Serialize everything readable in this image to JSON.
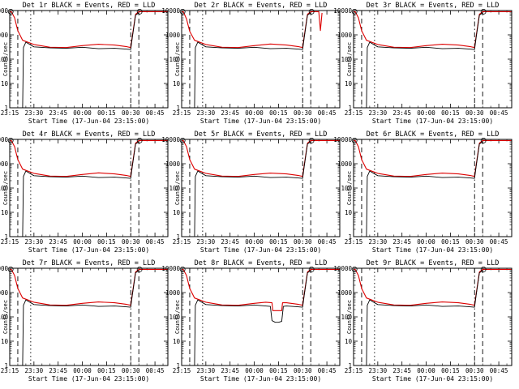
{
  "chart_data": [
    {
      "type": "line",
      "title": "Det 1r BLACK = Events, RED = LLD",
      "ylabel": "Counts/sec",
      "xlabel": "Start Time (17-Jun-04 23:15:00)",
      "x_tick_labels": [
        "23:15",
        "23:30",
        "23:45",
        "00:00",
        "00:15",
        "00:30",
        "00:45"
      ],
      "y_tick_labels": [
        "1",
        "10",
        "100",
        "1000",
        "10000"
      ],
      "y_scale": "log",
      "ylim": [
        1,
        10000
      ],
      "xlim_minutes": [
        0,
        98
      ],
      "series": [
        {
          "name": "LLD",
          "color": "#dd0000",
          "x": [
            0,
            1,
            3,
            5,
            8,
            15,
            25,
            35,
            45,
            55,
            65,
            72,
            75,
            76,
            78,
            80,
            98
          ],
          "y": [
            9000,
            9000,
            5000,
            1500,
            600,
            400,
            310,
            300,
            360,
            410,
            380,
            330,
            300,
            900,
            7000,
            9000,
            9000
          ]
        },
        {
          "name": "Events",
          "color": "#000000",
          "x": [
            8,
            8.5,
            10,
            15,
            25,
            35,
            45,
            55,
            65,
            72,
            75,
            76,
            78,
            80
          ],
          "y": [
            1,
            300,
            500,
            320,
            290,
            280,
            310,
            270,
            280,
            260,
            250,
            800,
            6500,
            8000
          ]
        }
      ],
      "vlines_minutes": [
        [
          5,
          "dash"
        ],
        [
          13,
          "dot"
        ],
        [
          75,
          "dashdot"
        ],
        [
          80,
          "dash"
        ]
      ]
    },
    {
      "type": "line",
      "title": "Det 2r BLACK = Events, RED = LLD",
      "ylabel": "Counts/sec",
      "xlabel": "Start Time (17-Jun-04 23:15:00)",
      "x_tick_labels": [
        "23:15",
        "23:30",
        "23:45",
        "00:00",
        "00:15",
        "00:30",
        "00:45"
      ],
      "y_tick_labels": [
        "1",
        "10",
        "100",
        "1000",
        "10000"
      ],
      "y_scale": "log",
      "ylim": [
        1,
        10000
      ],
      "xlim_minutes": [
        0,
        98
      ],
      "series": [
        {
          "name": "LLD",
          "color": "#dd0000",
          "x": [
            0,
            1,
            3,
            5,
            8,
            15,
            25,
            35,
            45,
            55,
            65,
            72,
            75,
            76,
            78,
            80,
            85,
            86,
            87
          ],
          "y": [
            9000,
            9000,
            4500,
            1400,
            600,
            400,
            310,
            300,
            360,
            420,
            380,
            330,
            300,
            900,
            7000,
            9000,
            9000,
            1500,
            8000
          ]
        },
        {
          "name": "Events",
          "color": "#000000",
          "x": [
            8,
            8.5,
            10,
            15,
            25,
            35,
            45,
            55,
            65,
            72,
            75,
            76,
            78,
            80
          ],
          "y": [
            1,
            300,
            500,
            320,
            290,
            280,
            310,
            270,
            280,
            260,
            250,
            800,
            6500,
            8000
          ]
        }
      ],
      "vlines_minutes": [
        [
          5,
          "dash"
        ],
        [
          13,
          "dot"
        ],
        [
          75,
          "dashdot"
        ],
        [
          80,
          "dash"
        ]
      ]
    },
    {
      "type": "line",
      "title": "Det 3r BLACK = Events, RED = LLD",
      "ylabel": "Counts/sec",
      "xlabel": "Start Time (17-Jun-04 23:15:00)",
      "x_tick_labels": [
        "23:15",
        "23:30",
        "23:45",
        "00:00",
        "00:15",
        "00:30",
        "00:45"
      ],
      "y_tick_labels": [
        "1",
        "10",
        "100",
        "1000",
        "10000"
      ],
      "y_scale": "log",
      "ylim": [
        1,
        10000
      ],
      "xlim_minutes": [
        0,
        98
      ],
      "series": [
        {
          "name": "LLD",
          "color": "#dd0000",
          "x": [
            0,
            1,
            3,
            5,
            8,
            15,
            25,
            35,
            45,
            55,
            65,
            72,
            75,
            76,
            78,
            80,
            98
          ],
          "y": [
            9000,
            9000,
            5000,
            1500,
            600,
            400,
            310,
            300,
            360,
            410,
            380,
            330,
            300,
            900,
            7000,
            9000,
            9000
          ]
        },
        {
          "name": "Events",
          "color": "#000000",
          "x": [
            8,
            8.5,
            10,
            15,
            25,
            35,
            45,
            55,
            65,
            72,
            75,
            76,
            78,
            80
          ],
          "y": [
            1,
            300,
            500,
            320,
            290,
            280,
            310,
            270,
            280,
            260,
            250,
            800,
            6500,
            8000
          ]
        }
      ],
      "vlines_minutes": [
        [
          5,
          "dash"
        ],
        [
          13,
          "dot"
        ],
        [
          75,
          "dashdot"
        ],
        [
          80,
          "dash"
        ]
      ]
    },
    {
      "type": "line",
      "title": "Det 4r BLACK = Events, RED = LLD",
      "ylabel": "Counts/sec",
      "xlabel": "Start Time (17-Jun-04 23:15:00)",
      "x_tick_labels": [
        "23:15",
        "23:30",
        "23:45",
        "00:00",
        "00:15",
        "00:30",
        "00:45"
      ],
      "y_tick_labels": [
        "1",
        "10",
        "100",
        "1000",
        "10000"
      ],
      "y_scale": "log",
      "ylim": [
        1,
        10000
      ],
      "xlim_minutes": [
        0,
        98
      ],
      "series": [
        {
          "name": "LLD",
          "color": "#dd0000",
          "x": [
            0,
            1,
            3,
            5,
            8,
            15,
            25,
            35,
            45,
            55,
            65,
            72,
            75,
            76,
            78,
            80,
            98
          ],
          "y": [
            9000,
            9000,
            5000,
            1500,
            600,
            400,
            310,
            300,
            360,
            420,
            380,
            330,
            300,
            900,
            7000,
            9000,
            9000
          ]
        },
        {
          "name": "Events",
          "color": "#000000",
          "x": [
            8,
            8.5,
            10,
            15,
            25,
            35,
            45,
            55,
            65,
            72,
            75,
            76,
            78,
            80
          ],
          "y": [
            1,
            300,
            500,
            320,
            290,
            280,
            310,
            270,
            280,
            260,
            250,
            800,
            6500,
            8000
          ]
        }
      ],
      "vlines_minutes": [
        [
          5,
          "dash"
        ],
        [
          13,
          "dot"
        ],
        [
          75,
          "dashdot"
        ],
        [
          80,
          "dash"
        ]
      ]
    },
    {
      "type": "line",
      "title": "Det 5r BLACK = Events, RED = LLD",
      "ylabel": "Counts/sec",
      "xlabel": "Start Time (17-Jun-04 23:15:00)",
      "x_tick_labels": [
        "23:15",
        "23:30",
        "23:45",
        "00:00",
        "00:15",
        "00:30",
        "00:45"
      ],
      "y_tick_labels": [
        "1",
        "10",
        "100",
        "1000",
        "10000"
      ],
      "y_scale": "log",
      "ylim": [
        1,
        10000
      ],
      "xlim_minutes": [
        0,
        98
      ],
      "series": [
        {
          "name": "LLD",
          "color": "#dd0000",
          "x": [
            0,
            1,
            3,
            5,
            8,
            15,
            25,
            35,
            45,
            55,
            65,
            72,
            75,
            76,
            78,
            80,
            98
          ],
          "y": [
            9000,
            9000,
            5000,
            1500,
            600,
            400,
            310,
            300,
            360,
            410,
            380,
            330,
            300,
            900,
            7000,
            9000,
            9000
          ]
        },
        {
          "name": "Events",
          "color": "#000000",
          "x": [
            8,
            8.5,
            10,
            15,
            25,
            35,
            45,
            55,
            65,
            72,
            75,
            76,
            78,
            80
          ],
          "y": [
            1,
            300,
            500,
            320,
            290,
            280,
            310,
            270,
            280,
            260,
            250,
            800,
            6500,
            8000
          ]
        }
      ],
      "vlines_minutes": [
        [
          5,
          "dash"
        ],
        [
          13,
          "dot"
        ],
        [
          75,
          "dashdot"
        ],
        [
          80,
          "dash"
        ]
      ]
    },
    {
      "type": "line",
      "title": "Det 6r BLACK = Events, RED = LLD",
      "ylabel": "Counts/sec",
      "xlabel": "Start Time (17-Jun-04 23:15:00)",
      "x_tick_labels": [
        "23:15",
        "23:30",
        "23:45",
        "00:00",
        "00:15",
        "00:30",
        "00:45"
      ],
      "y_tick_labels": [
        "1",
        "10",
        "100",
        "1000",
        "10000"
      ],
      "y_scale": "log",
      "ylim": [
        1,
        10000
      ],
      "xlim_minutes": [
        0,
        98
      ],
      "series": [
        {
          "name": "LLD",
          "color": "#dd0000",
          "x": [
            0,
            1,
            3,
            5,
            8,
            15,
            25,
            35,
            45,
            55,
            65,
            72,
            75,
            76,
            78,
            80,
            98
          ],
          "y": [
            9000,
            9000,
            5000,
            1500,
            600,
            400,
            310,
            300,
            360,
            410,
            380,
            330,
            300,
            900,
            7000,
            9000,
            9000
          ]
        },
        {
          "name": "Events",
          "color": "#000000",
          "x": [
            8,
            8.5,
            10,
            15,
            25,
            35,
            45,
            55,
            65,
            72,
            75,
            76,
            78,
            80
          ],
          "y": [
            1,
            300,
            500,
            320,
            290,
            280,
            310,
            270,
            280,
            260,
            250,
            800,
            6500,
            8000
          ]
        }
      ],
      "vlines_minutes": [
        [
          5,
          "dash"
        ],
        [
          13,
          "dot"
        ],
        [
          75,
          "dashdot"
        ],
        [
          80,
          "dash"
        ]
      ]
    },
    {
      "type": "line",
      "title": "Det 7r BLACK = Events, RED = LLD",
      "ylabel": "Counts/sec",
      "xlabel": "Start Time (17-Jun-04 23:15:00)",
      "x_tick_labels": [
        "23:15",
        "23:30",
        "23:45",
        "00:00",
        "00:15",
        "00:30",
        "00:45"
      ],
      "y_tick_labels": [
        "1",
        "10",
        "100",
        "1000",
        "10000"
      ],
      "y_scale": "log",
      "ylim": [
        1,
        10000
      ],
      "xlim_minutes": [
        0,
        98
      ],
      "series": [
        {
          "name": "LLD",
          "color": "#dd0000",
          "x": [
            0,
            1,
            3,
            5,
            8,
            15,
            25,
            35,
            45,
            55,
            65,
            72,
            75,
            76,
            78,
            80,
            98
          ],
          "y": [
            9000,
            9000,
            5000,
            1500,
            600,
            400,
            310,
            300,
            360,
            410,
            380,
            330,
            300,
            900,
            7000,
            9000,
            9000
          ]
        },
        {
          "name": "Events",
          "color": "#000000",
          "x": [
            8,
            8.5,
            10,
            15,
            25,
            35,
            45,
            55,
            65,
            72,
            75,
            76,
            78,
            80
          ],
          "y": [
            1,
            300,
            500,
            320,
            290,
            280,
            310,
            270,
            280,
            260,
            250,
            800,
            6500,
            8000
          ]
        }
      ],
      "vlines_minutes": [
        [
          5,
          "dash"
        ],
        [
          13,
          "dot"
        ],
        [
          75,
          "dashdot"
        ],
        [
          80,
          "dash"
        ]
      ]
    },
    {
      "type": "line",
      "title": "Det 8r BLACK = Events, RED = LLD",
      "ylabel": "Counts/sec",
      "xlabel": "Start Time (17-Jun-04 23:15:00)",
      "x_tick_labels": [
        "23:15",
        "23:30",
        "23:45",
        "00:00",
        "00:15",
        "00:30",
        "00:45"
      ],
      "y_tick_labels": [
        "1",
        "10",
        "100",
        "1000",
        "10000"
      ],
      "y_scale": "log",
      "ylim": [
        1,
        10000
      ],
      "xlim_minutes": [
        0,
        98
      ],
      "series": [
        {
          "name": "LLD",
          "color": "#dd0000",
          "x": [
            0,
            1,
            3,
            5,
            8,
            15,
            25,
            35,
            45,
            52,
            56,
            56.5,
            60,
            62,
            62.5,
            65,
            72,
            75,
            76,
            78,
            80,
            98
          ],
          "y": [
            9000,
            9000,
            5000,
            1500,
            600,
            400,
            310,
            300,
            360,
            400,
            380,
            180,
            180,
            180,
            380,
            380,
            330,
            300,
            900,
            7000,
            9000,
            9000
          ]
        },
        {
          "name": "Events",
          "color": "#000000",
          "x": [
            8,
            8.5,
            10,
            15,
            25,
            35,
            45,
            52,
            55,
            56,
            58,
            60,
            62,
            63,
            65,
            72,
            75,
            76,
            78,
            80
          ],
          "y": [
            1,
            300,
            500,
            320,
            290,
            280,
            310,
            280,
            270,
            70,
            60,
            60,
            65,
            270,
            280,
            260,
            250,
            800,
            6500,
            8000
          ]
        }
      ],
      "vlines_minutes": [
        [
          5,
          "dash"
        ],
        [
          13,
          "dot"
        ],
        [
          75,
          "dashdot"
        ],
        [
          80,
          "dash"
        ]
      ]
    },
    {
      "type": "line",
      "title": "Det 9r BLACK = Events, RED = LLD",
      "ylabel": "Counts/sec",
      "xlabel": "Start Time (17-Jun-04 23:15:00)",
      "x_tick_labels": [
        "23:15",
        "23:30",
        "23:45",
        "00:00",
        "00:15",
        "00:30",
        "00:45"
      ],
      "y_tick_labels": [
        "1",
        "10",
        "100",
        "1000",
        "10000"
      ],
      "y_scale": "log",
      "ylim": [
        1,
        10000
      ],
      "xlim_minutes": [
        0,
        98
      ],
      "series": [
        {
          "name": "LLD",
          "color": "#dd0000",
          "x": [
            0,
            1,
            3,
            5,
            8,
            15,
            25,
            35,
            45,
            55,
            65,
            72,
            75,
            76,
            78,
            80,
            98
          ],
          "y": [
            9000,
            9000,
            5000,
            1500,
            600,
            400,
            310,
            300,
            360,
            410,
            380,
            330,
            300,
            900,
            7000,
            9000,
            9000
          ]
        },
        {
          "name": "Events",
          "color": "#000000",
          "x": [
            8,
            8.5,
            10,
            15,
            25,
            35,
            45,
            55,
            65,
            72,
            75,
            76,
            78,
            80
          ],
          "y": [
            1,
            300,
            500,
            320,
            290,
            280,
            310,
            270,
            280,
            260,
            250,
            800,
            6500,
            8000
          ]
        }
      ],
      "vlines_minutes": [
        [
          5,
          "dash"
        ],
        [
          13,
          "dot"
        ],
        [
          75,
          "dashdot"
        ],
        [
          80,
          "dash"
        ]
      ]
    }
  ]
}
